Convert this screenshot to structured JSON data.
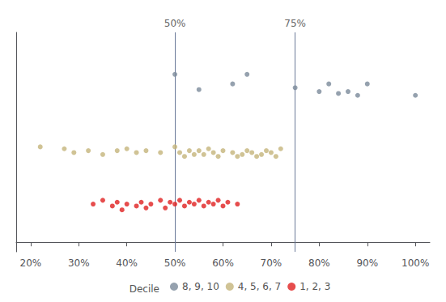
{
  "chart_data": {
    "type": "scatter",
    "xlim": [
      0.17,
      1.03
    ],
    "ylim": [
      -0.05,
      1.1
    ],
    "xticks": [
      {
        "value": 0.2,
        "label": "20%"
      },
      {
        "value": 0.3,
        "label": "30%"
      },
      {
        "value": 0.4,
        "label": "40%"
      },
      {
        "value": 0.5,
        "label": "50%"
      },
      {
        "value": 0.6,
        "label": "60%"
      },
      {
        "value": 0.7,
        "label": "70%"
      },
      {
        "value": 0.8,
        "label": "80%"
      },
      {
        "value": 0.9,
        "label": "90%"
      },
      {
        "value": 1.0,
        "label": "100%"
      }
    ],
    "tick_labels": "x",
    "grid": false,
    "legend": "bottom",
    "legend_title": "Decile",
    "marker": "circle",
    "annotations": [
      {
        "type": "vline",
        "x": 0.5,
        "label": "50%",
        "color": "#6b7a99"
      },
      {
        "type": "vline",
        "x": 0.75,
        "label": "75%",
        "color": "#6b7a99"
      }
    ],
    "series": [
      {
        "name": "8, 9, 10",
        "color": "#7a8a9a",
        "values": [
          [
            0.5,
            0.88
          ],
          [
            0.55,
            0.8
          ],
          [
            0.62,
            0.83
          ],
          [
            0.65,
            0.88
          ],
          [
            0.75,
            0.81
          ],
          [
            0.8,
            0.79
          ],
          [
            0.82,
            0.83
          ],
          [
            0.84,
            0.78
          ],
          [
            0.86,
            0.79
          ],
          [
            0.88,
            0.77
          ],
          [
            0.9,
            0.83
          ],
          [
            1.0,
            0.77
          ]
        ]
      },
      {
        "name": "4, 5, 6, 7",
        "color": "#c4b47a",
        "values": [
          [
            0.22,
            0.5
          ],
          [
            0.27,
            0.49
          ],
          [
            0.29,
            0.47
          ],
          [
            0.32,
            0.48
          ],
          [
            0.35,
            0.46
          ],
          [
            0.38,
            0.48
          ],
          [
            0.4,
            0.49
          ],
          [
            0.42,
            0.47
          ],
          [
            0.44,
            0.48
          ],
          [
            0.47,
            0.47
          ],
          [
            0.5,
            0.5
          ],
          [
            0.51,
            0.47
          ],
          [
            0.52,
            0.45
          ],
          [
            0.53,
            0.48
          ],
          [
            0.54,
            0.46
          ],
          [
            0.55,
            0.48
          ],
          [
            0.56,
            0.46
          ],
          [
            0.57,
            0.49
          ],
          [
            0.58,
            0.47
          ],
          [
            0.59,
            0.45
          ],
          [
            0.6,
            0.48
          ],
          [
            0.62,
            0.47
          ],
          [
            0.63,
            0.45
          ],
          [
            0.64,
            0.46
          ],
          [
            0.65,
            0.48
          ],
          [
            0.66,
            0.47
          ],
          [
            0.67,
            0.45
          ],
          [
            0.68,
            0.46
          ],
          [
            0.69,
            0.48
          ],
          [
            0.7,
            0.47
          ],
          [
            0.71,
            0.45
          ],
          [
            0.72,
            0.49
          ]
        ]
      },
      {
        "name": "1, 2, 3",
        "color": "#e02020",
        "values": [
          [
            0.33,
            0.2
          ],
          [
            0.35,
            0.22
          ],
          [
            0.37,
            0.19
          ],
          [
            0.38,
            0.21
          ],
          [
            0.39,
            0.17
          ],
          [
            0.4,
            0.2
          ],
          [
            0.42,
            0.19
          ],
          [
            0.43,
            0.21
          ],
          [
            0.44,
            0.18
          ],
          [
            0.45,
            0.2
          ],
          [
            0.47,
            0.22
          ],
          [
            0.48,
            0.18
          ],
          [
            0.49,
            0.21
          ],
          [
            0.5,
            0.2
          ],
          [
            0.51,
            0.22
          ],
          [
            0.52,
            0.19
          ],
          [
            0.53,
            0.21
          ],
          [
            0.54,
            0.2
          ],
          [
            0.55,
            0.22
          ],
          [
            0.56,
            0.19
          ],
          [
            0.57,
            0.21
          ],
          [
            0.58,
            0.2
          ],
          [
            0.59,
            0.22
          ],
          [
            0.6,
            0.19
          ],
          [
            0.61,
            0.21
          ],
          [
            0.63,
            0.2
          ]
        ]
      }
    ]
  }
}
